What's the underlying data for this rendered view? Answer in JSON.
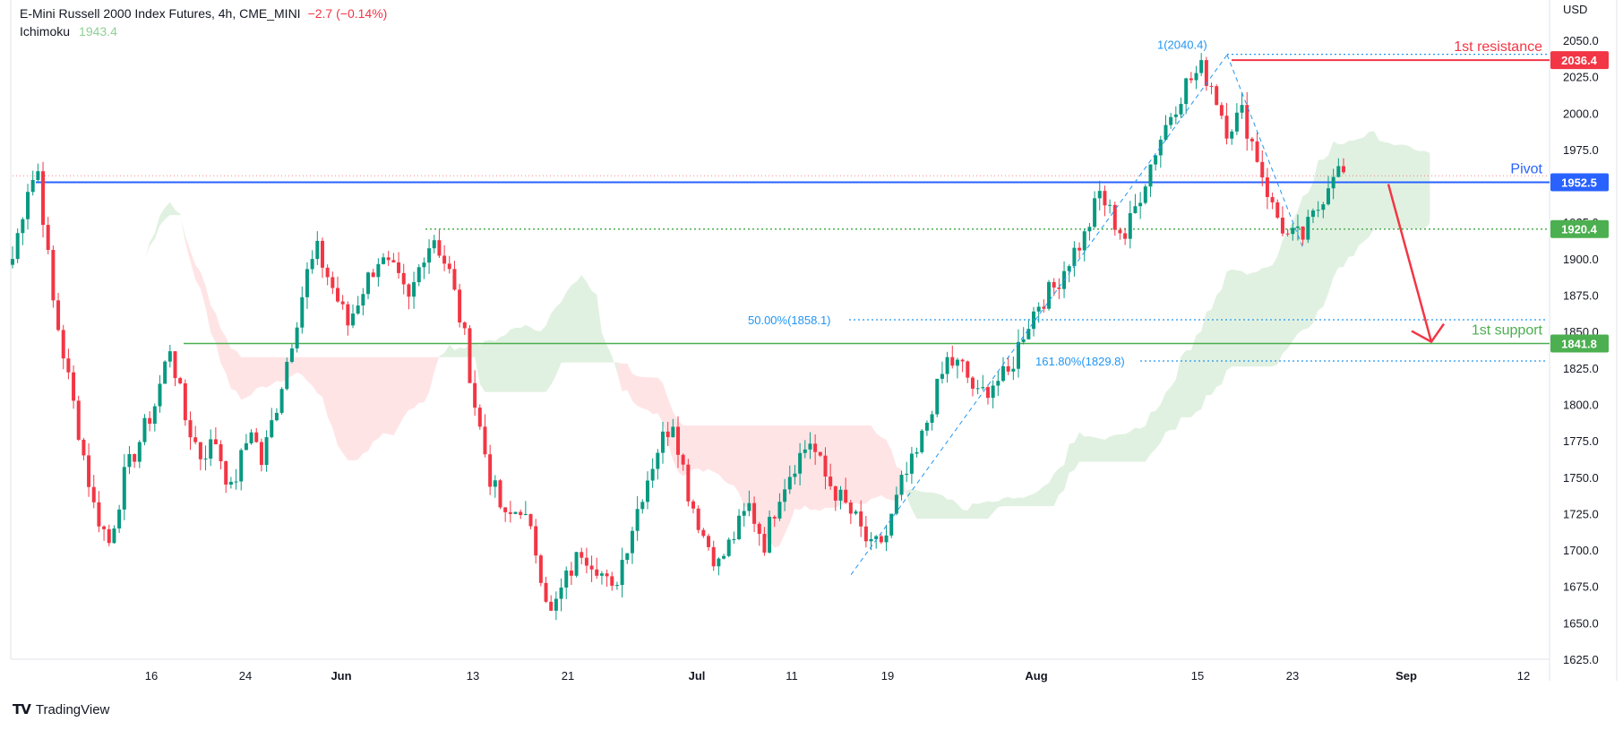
{
  "header": {
    "title": "E-Mini Russell 2000 Index Futures, 4h, CME_MINI",
    "change": "−2.7 (−0.14%)",
    "indicator": "Ichimoku",
    "indicator_value": "1943.4"
  },
  "brand": {
    "logo": "TV",
    "name": "TradingView"
  },
  "colors": {
    "up": "#089981",
    "down": "#f23645",
    "pivot": "#2962ff",
    "support": "#4caf50",
    "resistance": "#f23645",
    "fib": "#2196f3",
    "cloud_bull": "#c8e6c9",
    "cloud_bear": "#ffcdd2"
  },
  "chart_data": {
    "type": "candlestick",
    "currency": "USD",
    "ylim": [
      1615,
      2060
    ],
    "y_ticks": [
      "2050.0",
      "2025.0",
      "2000.0",
      "1975.0",
      "1950.0",
      "1925.0",
      "1900.0",
      "1875.0",
      "1850.0",
      "1825.0",
      "1800.0",
      "1775.0",
      "1750.0",
      "1725.0",
      "1700.0",
      "1675.0",
      "1650.0",
      "1625.0"
    ],
    "x_ticks": [
      "16",
      "24",
      "Jun",
      "13",
      "21",
      "Jul",
      "11",
      "19",
      "Aug",
      "15",
      "23",
      "Sep",
      "12"
    ],
    "anchors": [
      [
        0,
        1900
      ],
      [
        3,
        1950
      ],
      [
        5,
        1960
      ],
      [
        8,
        1870
      ],
      [
        12,
        1800
      ],
      [
        16,
        1730
      ],
      [
        19,
        1705
      ],
      [
        22,
        1750
      ],
      [
        25,
        1775
      ],
      [
        28,
        1800
      ],
      [
        31,
        1840
      ],
      [
        34,
        1790
      ],
      [
        37,
        1765
      ],
      [
        40,
        1775
      ],
      [
        43,
        1740
      ],
      [
        47,
        1785
      ],
      [
        49,
        1760
      ],
      [
        52,
        1800
      ],
      [
        55,
        1845
      ],
      [
        58,
        1890
      ],
      [
        60,
        1905
      ],
      [
        63,
        1880
      ],
      [
        66,
        1855
      ],
      [
        69,
        1880
      ],
      [
        72,
        1900
      ],
      [
        75,
        1890
      ],
      [
        78,
        1870
      ],
      [
        81,
        1905
      ],
      [
        83,
        1915
      ],
      [
        86,
        1890
      ],
      [
        89,
        1845
      ],
      [
        91,
        1800
      ],
      [
        94,
        1750
      ],
      [
        97,
        1720
      ],
      [
        100,
        1730
      ],
      [
        103,
        1700
      ],
      [
        106,
        1655
      ],
      [
        109,
        1680
      ],
      [
        112,
        1700
      ],
      [
        115,
        1690
      ],
      [
        118,
        1670
      ],
      [
        121,
        1705
      ],
      [
        124,
        1740
      ],
      [
        127,
        1770
      ],
      [
        130,
        1790
      ],
      [
        133,
        1740
      ],
      [
        136,
        1710
      ],
      [
        139,
        1690
      ],
      [
        142,
        1710
      ],
      [
        145,
        1730
      ],
      [
        148,
        1705
      ],
      [
        151,
        1740
      ],
      [
        154,
        1760
      ],
      [
        157,
        1775
      ],
      [
        160,
        1750
      ],
      [
        163,
        1735
      ],
      [
        166,
        1720
      ],
      [
        169,
        1700
      ],
      [
        172,
        1710
      ],
      [
        175,
        1745
      ],
      [
        178,
        1765
      ],
      [
        181,
        1800
      ],
      [
        184,
        1830
      ],
      [
        187,
        1825
      ],
      [
        190,
        1805
      ],
      [
        193,
        1815
      ],
      [
        196,
        1820
      ],
      [
        199,
        1850
      ],
      [
        202,
        1870
      ],
      [
        205,
        1880
      ],
      [
        208,
        1900
      ],
      [
        211,
        1915
      ],
      [
        214,
        1945
      ],
      [
        217,
        1925
      ],
      [
        219,
        1915
      ],
      [
        222,
        1945
      ],
      [
        225,
        1975
      ],
      [
        228,
        2000
      ],
      [
        231,
        2020
      ],
      [
        234,
        2030
      ],
      [
        236,
        2020
      ],
      [
        239,
        1990
      ],
      [
        242,
        2000
      ],
      [
        245,
        1970
      ],
      [
        248,
        1935
      ],
      [
        251,
        1915
      ],
      [
        254,
        1915
      ],
      [
        257,
        1935
      ],
      [
        260,
        1962
      ],
      [
        262,
        1958
      ]
    ],
    "levels": [
      {
        "name": "1st resistance",
        "value": 2036.4,
        "label": "2036.4"
      },
      {
        "name": "Pivot",
        "value": 1952.5,
        "label": "1952.5"
      },
      {
        "name": "1920.4",
        "value": 1920.4,
        "label": "1920.4"
      },
      {
        "name": "1st support",
        "value": 1841.8,
        "label": "1841.8"
      }
    ],
    "fib": [
      {
        "text": "1(2040.4)",
        "value": 2040.4
      },
      {
        "text": "50.00%(1858.1)",
        "value": 1858.1
      },
      {
        "text": "161.80%(1829.8)",
        "value": 1829.8
      }
    ],
    "labels": {
      "resistance": "1st resistance",
      "pivot": "Pivot",
      "support": "1st support"
    }
  }
}
